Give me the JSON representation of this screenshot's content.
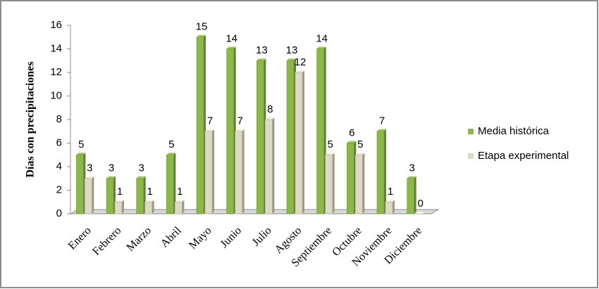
{
  "chart_data": {
    "type": "bar",
    "y_label": "Días con precipitaciones",
    "categories": [
      "Enero",
      "Febrero",
      "Marzo",
      "Abril",
      "Mayo",
      "Junio",
      "Julio",
      "Agosto",
      "Septiembre",
      "Octubre",
      "Noviembre",
      "Diciembre"
    ],
    "series": [
      {
        "name": "Media histórica",
        "color": "#8cb849",
        "values": [
          5,
          3,
          3,
          5,
          15,
          14,
          13,
          13,
          14,
          6,
          7,
          3
        ]
      },
      {
        "name": "Etapa experimental",
        "color": "#ddd9c3",
        "values": [
          3,
          1,
          1,
          1,
          7,
          7,
          8,
          12,
          5,
          5,
          1,
          0
        ]
      }
    ],
    "ylim": [
      0,
      16
    ],
    "yticks": [
      0,
      2,
      4,
      6,
      8,
      10,
      12,
      14,
      16
    ],
    "legend": "right"
  }
}
